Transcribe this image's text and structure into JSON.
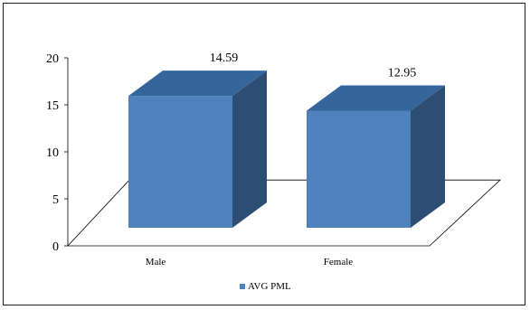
{
  "chart_data": {
    "type": "bar",
    "style": "3d-column",
    "categories": [
      "Male",
      "Female"
    ],
    "series": [
      {
        "name": "AVG PML",
        "values": [
          14.59,
          12.95
        ],
        "color": "#4f81bd"
      }
    ],
    "data_labels": [
      "14.59",
      "12.95"
    ],
    "ylim": [
      0,
      20
    ],
    "yticks": [
      0,
      5,
      10,
      15,
      20
    ],
    "grid": false,
    "legend": {
      "position": "bottom",
      "entries": [
        "AVG PML"
      ]
    },
    "title": "",
    "xlabel": "",
    "ylabel": ""
  },
  "colors": {
    "front": "#4f81bd",
    "side": "#2e4d73",
    "top": "#35659b",
    "floor_line": "#000000",
    "border": "#1a1a1a"
  }
}
